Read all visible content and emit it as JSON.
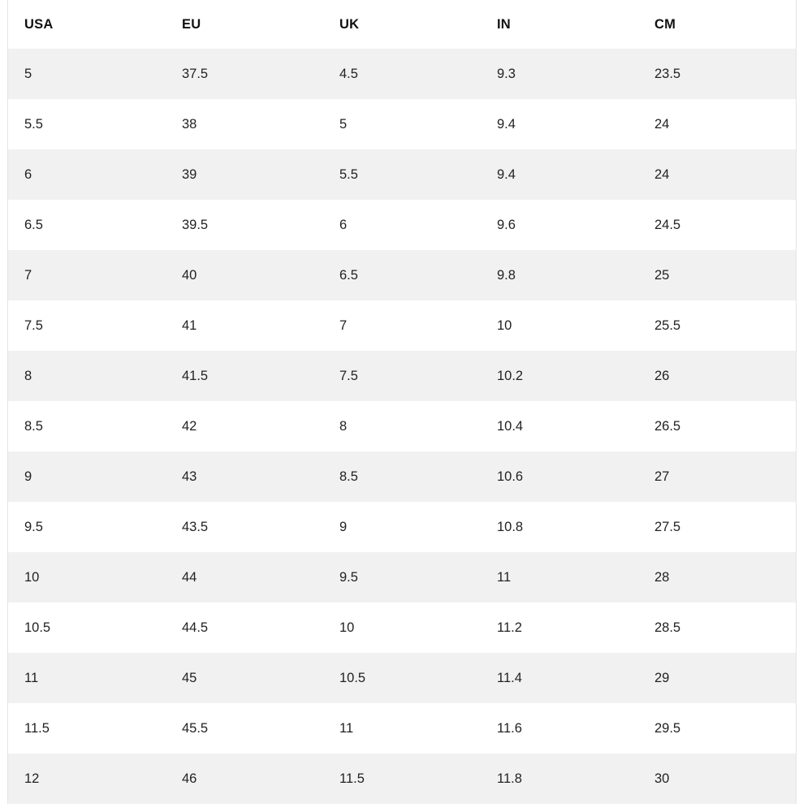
{
  "chart_data": {
    "type": "table",
    "columns": [
      "USA",
      "EU",
      "UK",
      "IN",
      "CM"
    ],
    "rows": [
      [
        "5",
        "37.5",
        "4.5",
        "9.3",
        "23.5"
      ],
      [
        "5.5",
        "38",
        "5",
        "9.4",
        "24"
      ],
      [
        "6",
        "39",
        "5.5",
        "9.4",
        "24"
      ],
      [
        "6.5",
        "39.5",
        "6",
        "9.6",
        "24.5"
      ],
      [
        "7",
        "40",
        "6.5",
        "9.8",
        "25"
      ],
      [
        "7.5",
        "41",
        "7",
        "10",
        "25.5"
      ],
      [
        "8",
        "41.5",
        "7.5",
        "10.2",
        "26"
      ],
      [
        "8.5",
        "42",
        "8",
        "10.4",
        "26.5"
      ],
      [
        "9",
        "43",
        "8.5",
        "10.6",
        "27"
      ],
      [
        "9.5",
        "43.5",
        "9",
        "10.8",
        "27.5"
      ],
      [
        "10",
        "44",
        "9.5",
        "11",
        "28"
      ],
      [
        "10.5",
        "44.5",
        "10",
        "11.2",
        "28.5"
      ],
      [
        "11",
        "45",
        "10.5",
        "11.4",
        "29"
      ],
      [
        "11.5",
        "45.5",
        "11",
        "11.6",
        "29.5"
      ],
      [
        "12",
        "46",
        "11.5",
        "11.8",
        "30"
      ]
    ],
    "layout": {
      "stripe_pattern": "odd-rows-gray",
      "grid": "none",
      "header_style": "bold"
    }
  },
  "colors": {
    "row_stripe": "#f1f1f1",
    "row_plain": "#ffffff",
    "table_border": "#e4e4e4",
    "header_text": "#111111",
    "cell_text": "#222222"
  }
}
